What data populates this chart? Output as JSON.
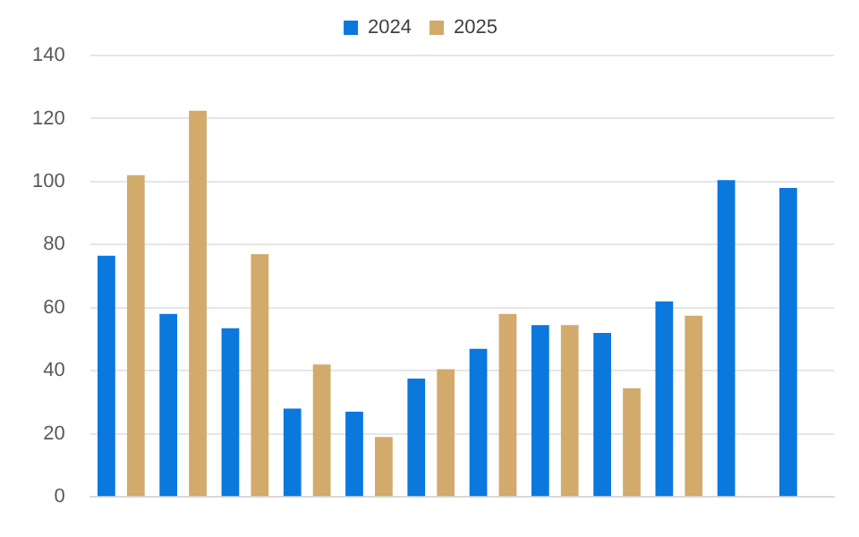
{
  "chart_data": {
    "type": "bar",
    "categories": [
      null,
      null,
      null,
      null,
      null,
      null,
      null,
      null,
      null,
      null,
      null,
      null
    ],
    "series": [
      {
        "name": "2024",
        "color": "#0a78dc",
        "values": [
          76.5,
          58,
          53.5,
          28,
          27,
          37.5,
          47,
          54.5,
          52,
          62,
          100.5,
          98
        ]
      },
      {
        "name": "2025",
        "color": "#d2aa6c",
        "values": [
          102,
          122.5,
          77,
          42,
          19,
          40.5,
          58,
          54.5,
          34.5,
          57.5,
          null,
          null
        ]
      }
    ],
    "ylim": [
      0,
      140
    ],
    "yticks": [
      0,
      20,
      40,
      60,
      80,
      100,
      120,
      140
    ],
    "grid": "y",
    "legend": "top"
  }
}
